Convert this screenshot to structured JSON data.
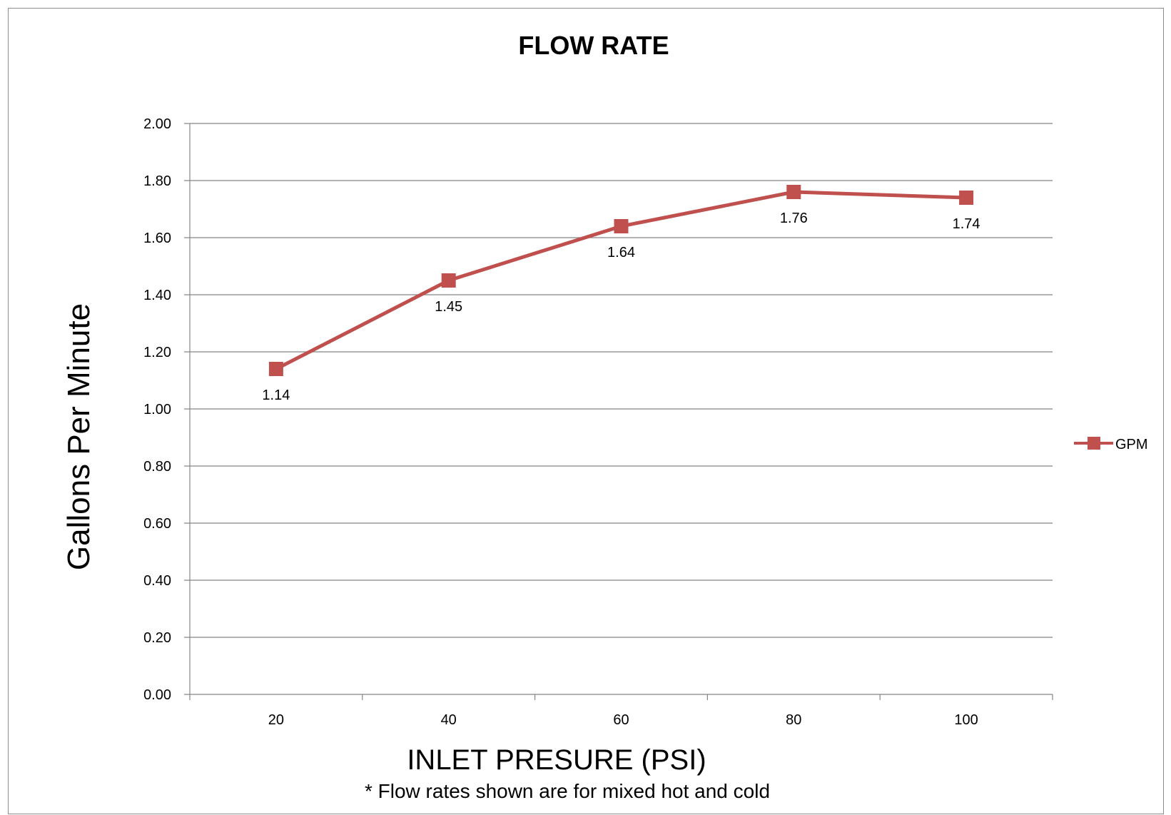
{
  "chart_data": {
    "type": "line",
    "title": "FLOW RATE",
    "xlabel": "INLET PRESURE (PSI)",
    "ylabel": "Gallons Per Minute",
    "note": "* Flow rates shown are for mixed hot and cold",
    "categories": [
      "20",
      "40",
      "60",
      "80",
      "100"
    ],
    "series": [
      {
        "name": "GPM",
        "values": [
          1.14,
          1.45,
          1.64,
          1.76,
          1.74
        ],
        "labels": [
          "1.14",
          "1.45",
          "1.64",
          "1.76",
          "1.74"
        ],
        "color": "#c0504d",
        "marker": "square"
      }
    ],
    "ylim": [
      0,
      2
    ],
    "yticks": [
      "0.00",
      "0.20",
      "0.40",
      "0.60",
      "0.80",
      "1.00",
      "1.20",
      "1.40",
      "1.60",
      "1.80",
      "2.00"
    ],
    "grid": true,
    "legend_position": "right"
  }
}
